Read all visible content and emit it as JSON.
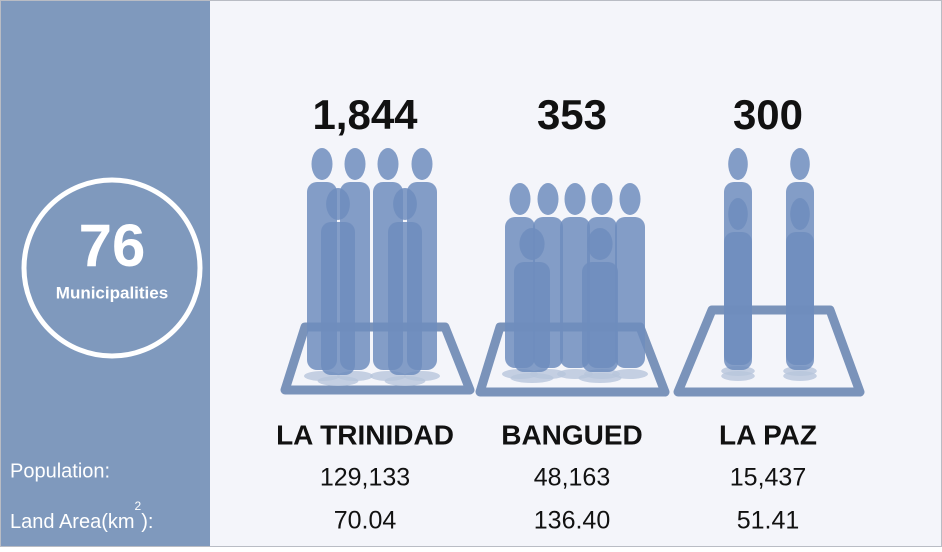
{
  "sidebar": {
    "count": "76",
    "count_label": "Municipalities",
    "population_label": "Population:",
    "land_area_label": "Land Area(km",
    "land_area_sup": "2",
    "land_area_end": "):"
  },
  "places": [
    {
      "density": "1,844",
      "name": "LA TRINIDAD",
      "population": "129,133",
      "land_area": "70.04"
    },
    {
      "density": "353",
      "name": "BANGUED",
      "population": "48,163",
      "land_area": "136.40"
    },
    {
      "density": "300",
      "name": "LA PAZ",
      "population": "15,437",
      "land_area": "51.41"
    }
  ]
}
